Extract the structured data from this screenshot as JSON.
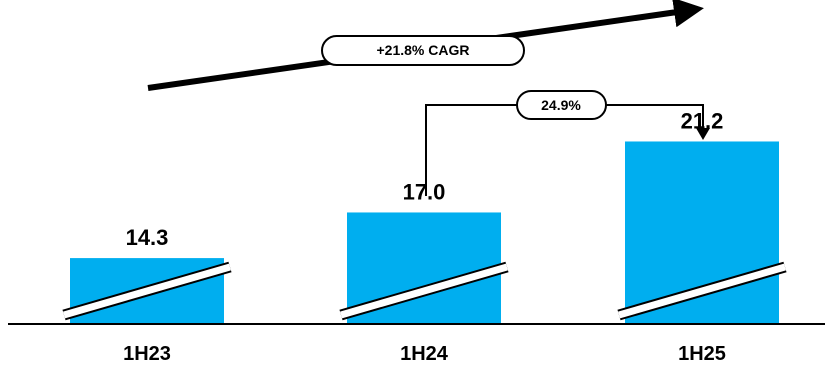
{
  "chart_data": {
    "type": "bar",
    "categories": [
      "1H23",
      "1H24",
      "1H25"
    ],
    "values": [
      14.3,
      17.0,
      21.2
    ],
    "value_labels": [
      "14.3",
      "17.0",
      "21.2"
    ],
    "axis_break": true,
    "grid": false,
    "annotations": {
      "cagr": "+21.8% CAGR",
      "growth": "24.9%"
    }
  },
  "colors": {
    "bar": "#00AEEF",
    "text": "#000000",
    "axis": "#000000"
  }
}
